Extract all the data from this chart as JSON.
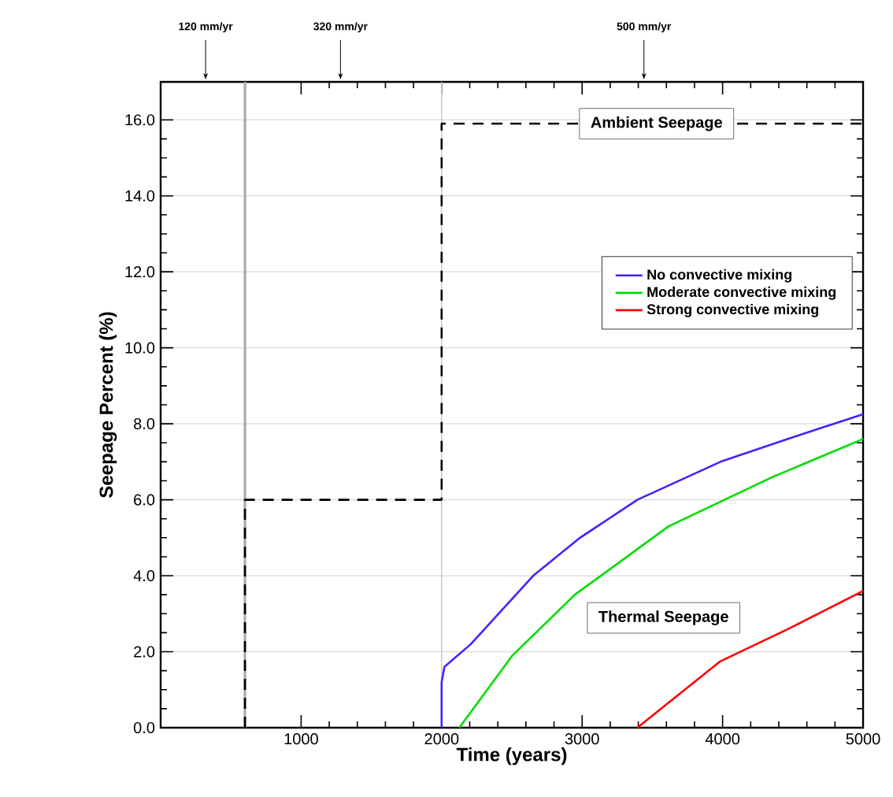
{
  "chart_data": {
    "type": "line",
    "xlabel": "Time (years)",
    "ylabel": "Seepage Percent (%)",
    "xlim": [
      0,
      5000
    ],
    "ylim": [
      0,
      17
    ],
    "xticks": [
      1000,
      2000,
      3000,
      4000,
      5000
    ],
    "yticks": [
      {
        "value": 0,
        "label": "0.0"
      },
      {
        "value": 2,
        "label": "2.0"
      },
      {
        "value": 4,
        "label": "4.0"
      },
      {
        "value": 6,
        "label": "6.0"
      },
      {
        "value": 8,
        "label": "8.0"
      },
      {
        "value": 10,
        "label": "10.0"
      },
      {
        "value": 12,
        "label": "12.0"
      },
      {
        "value": 14,
        "label": "14.0"
      },
      {
        "value": 16,
        "label": "16.0"
      }
    ],
    "grid": "y",
    "legend": "right",
    "line_style": "solid",
    "series": [
      {
        "type": "line",
        "color": "#000000",
        "line_style": "dashed",
        "x": [
          600,
          600,
          2000,
          2000,
          5000
        ],
        "values": [
          0,
          6.0,
          6.0,
          15.9,
          15.9
        ]
      },
      {
        "name": "No convective mixing",
        "color": "#4422ff",
        "x": [
          2000,
          2000,
          2020,
          2208,
          2652,
          2985,
          3393,
          3985,
          4503,
          5000
        ],
        "values": [
          0,
          1.2,
          1.6,
          2.2,
          4.0,
          5.0,
          6.0,
          7.0,
          7.65,
          8.25
        ]
      },
      {
        "name": "Moderate convective mixing",
        "color": "#00dd00",
        "x": [
          2126,
          2504,
          2948,
          3615,
          4356,
          5000
        ],
        "values": [
          0,
          1.9,
          3.5,
          5.3,
          6.6,
          7.6
        ]
      },
      {
        "name": "Strong convective mixing",
        "color": "#ff0000",
        "x": [
          3393,
          3985,
          4467,
          5000
        ],
        "values": [
          0,
          1.75,
          2.6,
          3.6
        ]
      }
    ],
    "ref_lines": [
      {
        "axis": "x",
        "value": 600,
        "color": "#aaaaaa"
      },
      {
        "axis": "x",
        "value": 2000,
        "color": "#cccccc"
      }
    ],
    "annotations": [
      "120 mm/yr",
      "320 mm/yr",
      "500 mm/yr",
      {
        "text": "Ambient Seepage",
        "x": 3530,
        "y": 15.9
      },
      "Thermal Seepage"
    ]
  }
}
